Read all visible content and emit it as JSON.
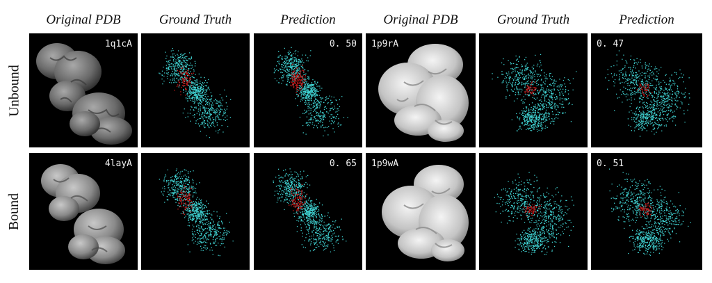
{
  "headers": [
    "Original PDB",
    "Ground Truth",
    "Prediction",
    "Original PDB",
    "Ground Truth",
    "Prediction"
  ],
  "row_labels": [
    "Unbound",
    "Bound"
  ],
  "rows": [
    {
      "left": {
        "pdb_id": "1q1cA",
        "score": "0. 50"
      },
      "right": {
        "pdb_id": "1p9rA",
        "score": "0. 47"
      }
    },
    {
      "left": {
        "pdb_id": "4layA",
        "score": "0. 65"
      },
      "right": {
        "pdb_id": "1p9wA",
        "score": "0. 51"
      }
    }
  ],
  "colors": {
    "panel_background": "#000000",
    "surface_dark": "#6e6e6e",
    "surface_light": "#c8c8c8",
    "site_point": "#3fd0d0",
    "binding_point": "#c01818"
  }
}
